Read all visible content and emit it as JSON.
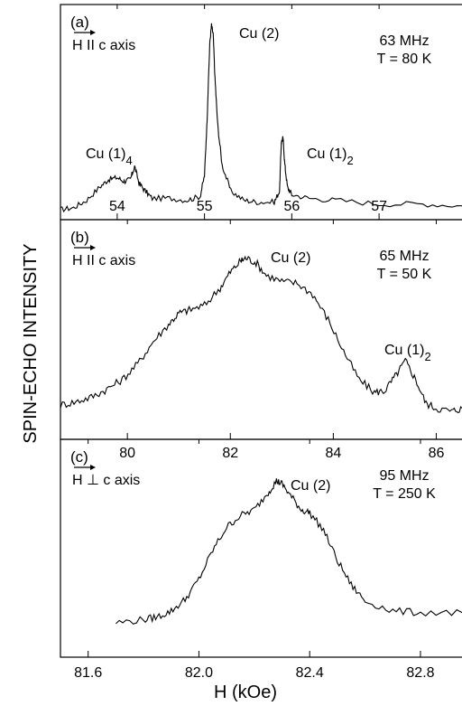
{
  "figure": {
    "ylabel": "SPIN-ECHO INTENSITY",
    "xlabel": "H (kOe)"
  },
  "chart_data": [
    {
      "type": "line",
      "panel": "(a)",
      "field_label": "H II c axis",
      "freq": "63 MHz",
      "temp": "T = 80 K",
      "xlim": [
        53.35,
        57.95
      ],
      "ylim": [
        0,
        1
      ],
      "xticks": [
        "54",
        "55",
        "56",
        "57"
      ],
      "xtick_values": [
        54,
        55,
        56,
        57
      ],
      "peaks": [
        {
          "label": "Cu (1)",
          "sub": "4",
          "x": 54.0
        },
        {
          "label": "Cu (2)",
          "sub": "",
          "x": 55.1
        },
        {
          "label": "Cu (1)",
          "sub": "2",
          "x": 55.9
        }
      ],
      "series": [
        {
          "x": [
            53.35,
            53.5,
            53.65,
            53.8,
            53.9,
            54.0,
            54.08,
            54.15,
            54.2,
            54.25,
            54.32,
            54.4,
            54.6,
            54.8,
            54.95,
            55.0,
            55.03,
            55.06,
            55.08,
            55.1,
            55.12,
            55.15,
            55.2,
            55.3,
            55.45,
            55.6,
            55.8,
            55.86,
            55.88,
            55.9,
            55.92,
            55.95,
            56.0,
            56.2,
            56.5,
            57.0,
            57.5,
            57.95
          ],
          "y": [
            0.02,
            0.03,
            0.07,
            0.14,
            0.18,
            0.19,
            0.17,
            0.18,
            0.25,
            0.16,
            0.12,
            0.08,
            0.08,
            0.07,
            0.09,
            0.2,
            0.5,
            0.9,
            1.0,
            0.95,
            0.72,
            0.48,
            0.26,
            0.12,
            0.07,
            0.06,
            0.06,
            0.12,
            0.38,
            0.4,
            0.26,
            0.14,
            0.1,
            0.08,
            0.07,
            0.05,
            0.05,
            0.04
          ]
        }
      ]
    },
    {
      "type": "line",
      "panel": "(b)",
      "field_label": "H II c axis",
      "freq": "65 MHz",
      "temp": "T = 50 K",
      "xlim": [
        78.7,
        86.5
      ],
      "ylim": [
        0,
        1
      ],
      "xticks": [
        "80",
        "82",
        "84",
        "86"
      ],
      "xtick_values": [
        80,
        82,
        84,
        86
      ],
      "peaks": [
        {
          "label": "Cu (2)",
          "sub": "",
          "x": 82.3
        },
        {
          "label": "Cu (1)",
          "sub": "2",
          "x": 85.4
        }
      ],
      "series": [
        {
          "x": [
            78.7,
            79.0,
            79.3,
            79.6,
            79.9,
            80.2,
            80.5,
            80.8,
            81.0,
            81.2,
            81.5,
            81.8,
            82.0,
            82.2,
            82.3,
            82.5,
            82.7,
            83.0,
            83.3,
            83.6,
            83.9,
            84.2,
            84.5,
            84.8,
            85.0,
            85.2,
            85.4,
            85.6,
            85.8,
            86.0,
            86.3,
            86.5
          ],
          "y": [
            0.04,
            0.06,
            0.09,
            0.14,
            0.2,
            0.3,
            0.44,
            0.55,
            0.62,
            0.64,
            0.67,
            0.78,
            0.88,
            0.95,
            0.97,
            0.94,
            0.86,
            0.82,
            0.81,
            0.74,
            0.58,
            0.38,
            0.2,
            0.12,
            0.13,
            0.22,
            0.32,
            0.2,
            0.05,
            0.02,
            0.0,
            0.02
          ]
        }
      ]
    },
    {
      "type": "line",
      "panel": "(c)",
      "field_label": "H ⊥ c axis",
      "freq": "95 MHz",
      "temp": "T = 250 K",
      "xlim": [
        81.5,
        82.95
      ],
      "ylim": [
        0,
        1
      ],
      "xticks": [
        "81.6",
        "82.0",
        "82.4",
        "82.8"
      ],
      "xtick_values": [
        81.6,
        82.0,
        82.4,
        82.8
      ],
      "peaks": [
        {
          "label": "Cu (2)",
          "sub": "",
          "x": 82.29
        }
      ],
      "series": [
        {
          "x": [
            81.7,
            81.8,
            81.85,
            81.9,
            81.95,
            82.0,
            82.05,
            82.1,
            82.15,
            82.2,
            82.25,
            82.28,
            82.3,
            82.33,
            82.37,
            82.4,
            82.45,
            82.5,
            82.55,
            82.6,
            82.7,
            82.8,
            82.95
          ],
          "y": [
            0.02,
            0.04,
            0.06,
            0.1,
            0.18,
            0.32,
            0.52,
            0.68,
            0.76,
            0.8,
            0.92,
            1.0,
            0.98,
            0.9,
            0.8,
            0.78,
            0.66,
            0.45,
            0.28,
            0.17,
            0.1,
            0.09,
            0.09
          ]
        }
      ]
    }
  ]
}
